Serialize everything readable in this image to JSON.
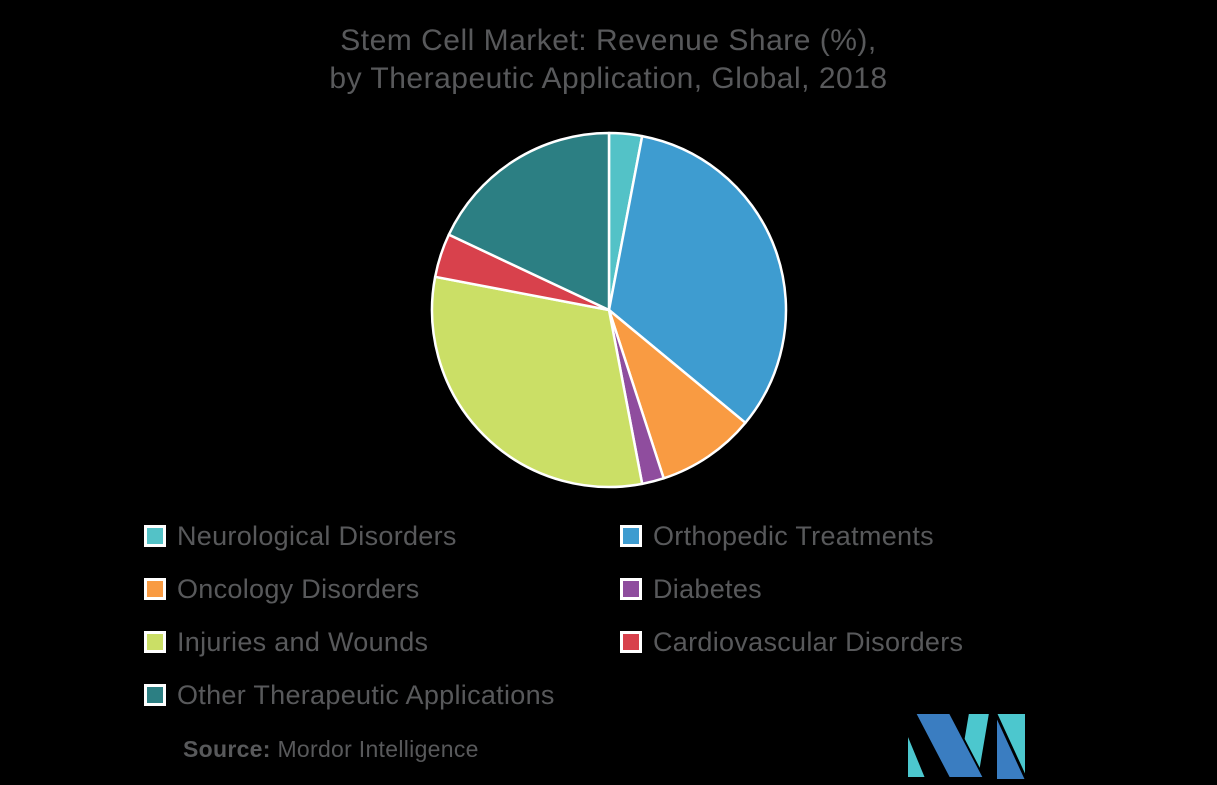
{
  "title": {
    "line1": "Stem Cell Market: Revenue Share (%),",
    "line2": "by Therapeutic Application, Global, 2018"
  },
  "source": {
    "label": "Source:",
    "value": "Mordor Intelligence"
  },
  "colors": {
    "background": "#000000",
    "text": "#58595B",
    "slice_border": "#FFFFFF"
  },
  "logo": {
    "name": "mordor-intelligence-logo",
    "teal": "#4CC7CE",
    "blue": "#3A7DC1"
  },
  "chart_data": {
    "type": "pie",
    "title": "Stem Cell Market: Revenue Share (%), by Therapeutic Application, Global, 2018",
    "start_angle_deg": 0,
    "direction": "clockwise",
    "legend_position": "bottom",
    "slices": [
      {
        "label": "Neurological Disorders",
        "value": 3,
        "color": "#53C2C7"
      },
      {
        "label": "Orthopedic Treatments",
        "value": 33,
        "color": "#3E9CD0"
      },
      {
        "label": "Oncology Disorders",
        "value": 9,
        "color": "#F99B42"
      },
      {
        "label": "Diabetes",
        "value": 2,
        "color": "#8F4D9E"
      },
      {
        "label": "Injuries and Wounds",
        "value": 31,
        "color": "#CBDF66"
      },
      {
        "label": "Cardiovascular Disorders",
        "value": 4,
        "color": "#D8414C"
      },
      {
        "label": "Other Therapeutic Applications",
        "value": 18,
        "color": "#2C7F83"
      }
    ]
  }
}
